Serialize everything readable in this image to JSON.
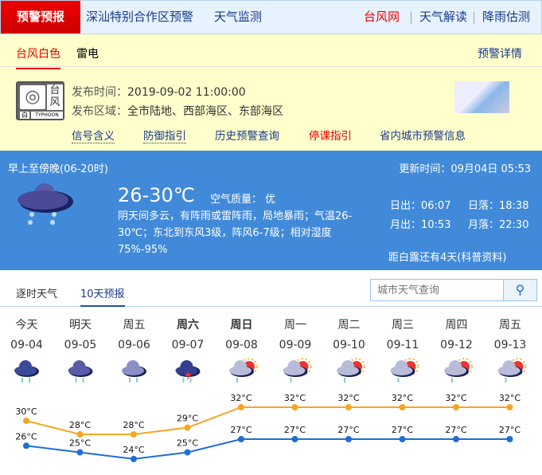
{
  "top_nav": {
    "active": "预警预报",
    "items": [
      "深汕特别合作区预警",
      "天气监测"
    ],
    "right": [
      "台风网",
      "天气解读",
      "降雨估测"
    ]
  },
  "warning": {
    "tabs": [
      "台风白色",
      "雷电"
    ],
    "detail": "预警详情",
    "icon_top": "台风",
    "icon_level": "白",
    "icon_en": "TYPHOON",
    "time_label": "发布时间：",
    "time": "2019-09-02 11:00:00",
    "area_label": "发布区域：",
    "area": "全市陆地、西部海区、东部海区",
    "links": [
      "信号含义",
      "防御指引",
      "历史预警查询",
      "停课指引",
      "省内城市预警信息"
    ]
  },
  "today": {
    "period": "早上至傍晚(06-20时)",
    "update": "更新时间：09月04日 05:53",
    "temp": "26-30℃",
    "aq": "空气质量：  优",
    "desc": "阴天间多云，有阵雨或雷阵雨，局地暴雨；气温26-30℃；东北到东风3级，阵风6-7级；相对湿度75%-95%",
    "sunrise": "日出：06:07",
    "sunset": "日落：18:38",
    "moonrise": "月出：10:53",
    "moonset": "月落：22:30",
    "term": "距白露还有4天(科普资料)"
  },
  "tabs": {
    "items": [
      "逐时天气",
      "10天预报"
    ],
    "active": 1,
    "search_placeholder": "城市天气查询"
  },
  "colors": {
    "high": "#f5a623",
    "low": "#1f6fd1",
    "accent": "#e00000"
  },
  "chart_data": {
    "type": "line",
    "days": [
      "今天",
      "明天",
      "周五",
      "周六",
      "周日",
      "周一",
      "周二",
      "周三",
      "周四",
      "周五"
    ],
    "dates": [
      "09-04",
      "09-05",
      "09-06",
      "09-07",
      "09-08",
      "09-09",
      "09-10",
      "09-11",
      "09-12",
      "09-13"
    ],
    "icons": [
      "rain",
      "heavy-rain",
      "moderate-rain",
      "thunderstorm",
      "partly-cloudy-shower",
      "partly-cloudy-shower",
      "partly-cloudy-shower",
      "partly-cloudy-shower",
      "partly-cloudy-shower",
      "partly-cloudy-shower"
    ],
    "series": [
      {
        "key": "high",
        "values": [
          30,
          28,
          28,
          29,
          32,
          32,
          32,
          32,
          32,
          32
        ]
      },
      {
        "key": "low",
        "values": [
          26,
          25,
          24,
          25,
          27,
          27,
          27,
          27,
          27,
          27
        ]
      }
    ],
    "unit": "°C"
  }
}
